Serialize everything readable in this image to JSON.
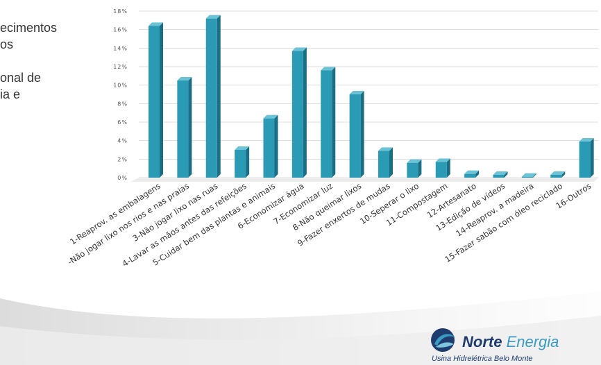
{
  "slide": {
    "text_lines": [
      "ecimentos",
      "os",
      "",
      "onal de",
      "ia e"
    ]
  },
  "chart_data": {
    "type": "bar",
    "categories": [
      "1-Reaprov. as embalagens",
      "-Não jogar lixo nos rios e nas praias",
      "3-Não jogar lixo nas ruas",
      "4-Lavar as mãos antes das refeições",
      "5-Cuidar bem das plantas e animais",
      "6-Economizar água",
      "7-Economizar luz",
      "8-Não queimar lixos",
      "9-Fazer enxertos de mudas",
      "10-Seperar o lixo",
      "11-Compostagem",
      "12-Artesanato",
      "13-Edição de vídeos",
      "14-Reaprov. a madeira",
      "15-Fazer sabão com óleo reciclado",
      "16-Outros"
    ],
    "values": [
      16.4,
      10.5,
      17.2,
      3.0,
      6.4,
      13.7,
      11.6,
      9.0,
      2.9,
      1.6,
      1.7,
      0.4,
      0.3,
      0.1,
      0.3,
      3.9
    ],
    "yticks": [
      "18%",
      "16%",
      "14%",
      "12%",
      "10%",
      "8%",
      "6%",
      "4%",
      "2%",
      "0%"
    ],
    "ylim": [
      0,
      18
    ],
    "grid": true,
    "bar_color": "#2a9ab5",
    "bar_side_color": "#1a6f85",
    "bar_top_color": "#6cc3d6"
  },
  "logo": {
    "name_bold": "Norte",
    "name_light": "Energia",
    "subtitle": "Usina Hidrelétrica Belo Monte"
  }
}
